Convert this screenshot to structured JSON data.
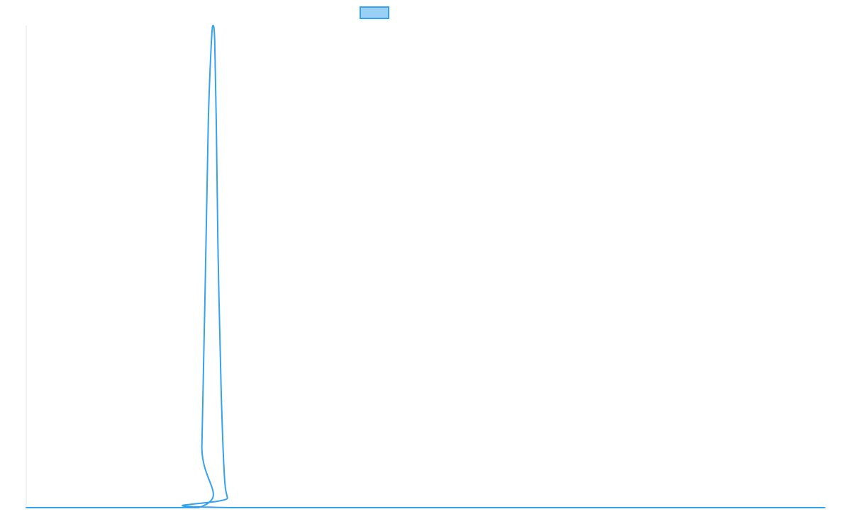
{
  "chart_data": {
    "type": "line",
    "title": "",
    "xlabel": "",
    "ylabel": "",
    "xlim": [
      0,
      100
    ],
    "ylim": [
      0,
      1
    ],
    "grid": false,
    "legend_position": "top-center",
    "series": [
      {
        "color": "#36a2eb",
        "fill_color": "#9ad0f5",
        "x": [
          0,
          21.6,
          22.0,
          22.4,
          22.8,
          23.2,
          23.4,
          23.6,
          23.8,
          24.0,
          24.4,
          24.8,
          25.2,
          25.6,
          100
        ],
        "y": [
          0,
          0,
          0.13,
          0.45,
          0.8,
          0.97,
          1.0,
          0.97,
          0.8,
          0.55,
          0.25,
          0.07,
          0.02,
          0,
          0
        ]
      }
    ]
  }
}
